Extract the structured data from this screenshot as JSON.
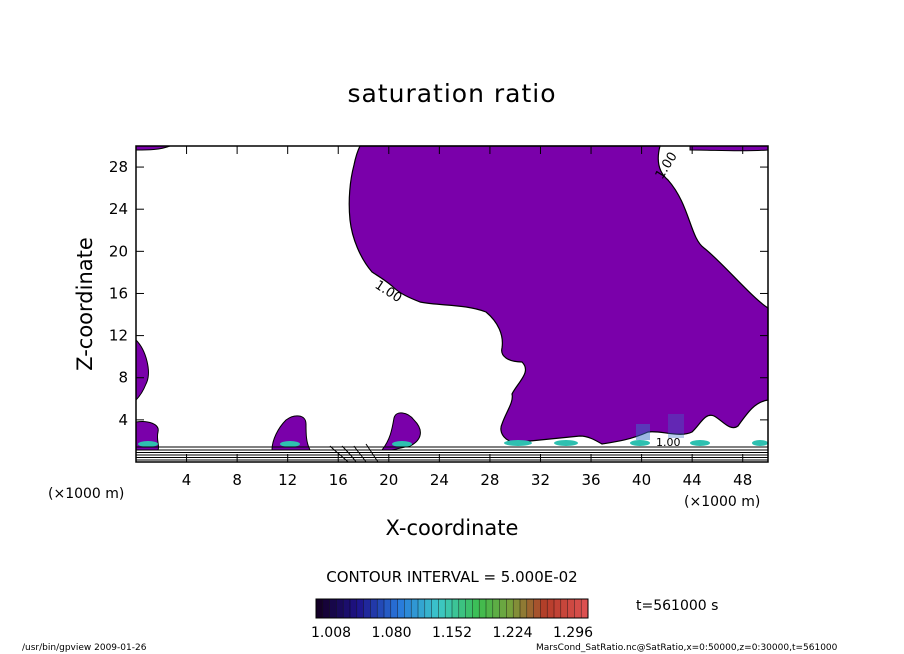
{
  "chart_data": {
    "type": "contour",
    "title": "saturation ratio",
    "xlabel": "X-coordinate",
    "ylabel": "Z-coordinate",
    "x_unit": "(×1000 m)",
    "y_unit": "(×1000 m)",
    "xlim": [
      0,
      50
    ],
    "ylim": [
      0,
      30
    ],
    "x_ticks": [
      4,
      8,
      12,
      16,
      20,
      24,
      28,
      32,
      36,
      40,
      44,
      48
    ],
    "y_ticks": [
      4,
      8,
      12,
      16,
      20,
      24,
      28
    ],
    "contour_labels": [
      "1.00",
      "1.00",
      "1.00"
    ],
    "contour_interval": "CONTOUR INTERVAL = 5.000E-02",
    "colorbar_ticks": [
      "1.008",
      "1.080",
      "1.152",
      "1.224",
      "1.296"
    ],
    "colorbar_range": [
      1.008,
      1.296
    ],
    "time_label": "t=561000 s",
    "fill_color": "#7a00aa",
    "grid": false
  },
  "footer": {
    "left": "/usr/bin/gpview  2009-01-26",
    "right": "MarsCond_SatRatio.nc@SatRatio,x=0:50000,z=0:30000,t=561000"
  }
}
